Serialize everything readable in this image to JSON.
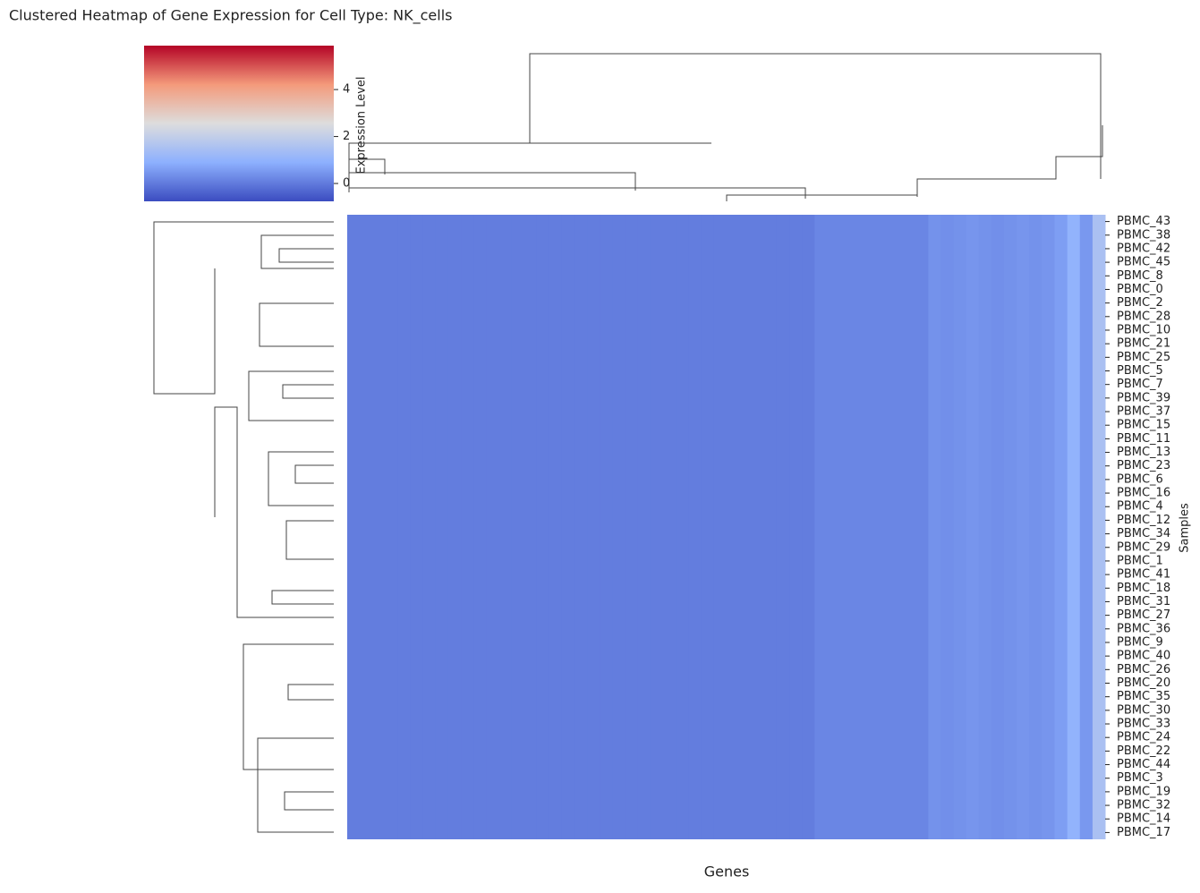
{
  "chart_data": {
    "type": "heatmap",
    "title": "Clustered Heatmap of Gene Expression for Cell Type: NK_cells",
    "x_label": "Genes",
    "y_label": "Samples",
    "rows": [
      "PBMC_43",
      "PBMC_38",
      "PBMC_42",
      "PBMC_45",
      "PBMC_8",
      "PBMC_0",
      "PBMC_2",
      "PBMC_28",
      "PBMC_10",
      "PBMC_21",
      "PBMC_25",
      "PBMC_5",
      "PBMC_7",
      "PBMC_39",
      "PBMC_37",
      "PBMC_15",
      "PBMC_11",
      "PBMC_13",
      "PBMC_23",
      "PBMC_6",
      "PBMC_16",
      "PBMC_4",
      "PBMC_12",
      "PBMC_34",
      "PBMC_29",
      "PBMC_1",
      "PBMC_41",
      "PBMC_18",
      "PBMC_31",
      "PBMC_27",
      "PBMC_36",
      "PBMC_9",
      "PBMC_40",
      "PBMC_26",
      "PBMC_20",
      "PBMC_35",
      "PBMC_30",
      "PBMC_33",
      "PBMC_24",
      "PBMC_22",
      "PBMC_44",
      "PBMC_3",
      "PBMC_19",
      "PBMC_32",
      "PBMC_14",
      "PBMC_17"
    ],
    "gene_values": [
      0.05,
      0.05,
      0.05,
      0.05,
      0.05,
      0.05,
      0.05,
      0.05,
      0.05,
      0.05,
      0.05,
      0.05,
      0.05,
      0.05,
      0.05,
      0.05,
      0.05,
      0.05,
      0.05,
      0.05,
      0.05,
      0.05,
      0.05,
      0.05,
      0.05,
      0.05,
      0.05,
      0.05,
      0.05,
      0.05,
      0.05,
      0.05,
      0.05,
      0.05,
      0.05,
      0.05,
      0.05,
      0.2,
      0.2,
      0.2,
      0.2,
      0.2,
      0.2,
      0.2,
      0.2,
      0.2,
      0.4,
      0.35,
      0.4,
      0.45,
      0.4,
      0.35,
      0.4,
      0.45,
      0.4,
      0.45,
      0.6,
      1.0,
      0.5,
      1.5
    ],
    "colorbar": {
      "label": "Expression Level",
      "clim": [
        -0.76,
        5.87
      ],
      "ticks": [
        0,
        2,
        4
      ],
      "colormap": [
        "#3b4cc0",
        "#8db0fe",
        "#dddddd",
        "#f49a7b",
        "#b40426"
      ]
    }
  }
}
